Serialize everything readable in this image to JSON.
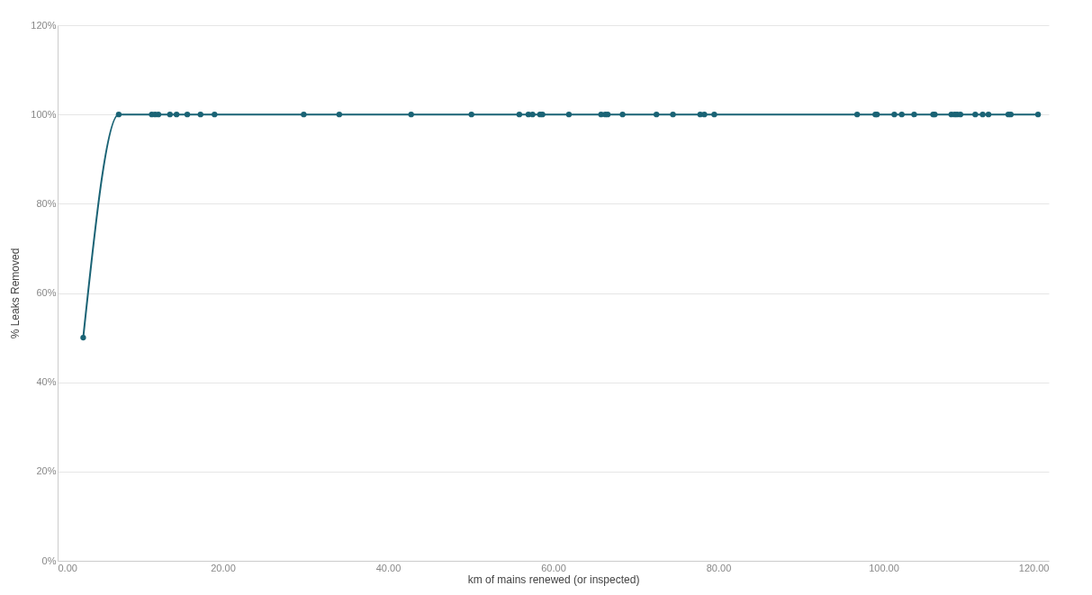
{
  "chart_data": {
    "type": "line",
    "xlabel": "km of mains renewed (or inspected)",
    "ylabel": "% Leaks Removed",
    "marker": "circle",
    "grid": "y",
    "x": [
      3.1,
      7.4,
      11.4,
      11.8,
      12.2,
      13.6,
      14.4,
      15.7,
      17.3,
      19.0,
      29.8,
      34.1,
      42.8,
      50.1,
      55.9,
      57.0,
      57.5,
      58.4,
      58.7,
      61.9,
      65.8,
      66.3,
      66.6,
      68.4,
      72.5,
      74.5,
      77.8,
      78.3,
      79.5,
      96.8,
      99.0,
      99.2,
      101.3,
      102.2,
      103.7,
      106.0,
      106.2,
      108.2,
      108.6,
      108.9,
      109.3,
      111.1,
      112.0,
      112.7,
      115.1,
      115.4,
      118.7
    ],
    "series": [
      {
        "color": "#1a6375",
        "values": [
          50,
          100,
          100,
          100,
          100,
          100,
          100,
          100,
          100,
          100,
          100,
          100,
          100,
          100,
          100,
          100,
          100,
          100,
          100,
          100,
          100,
          100,
          100,
          100,
          100,
          100,
          100,
          100,
          100,
          100,
          100,
          100,
          100,
          100,
          100,
          100,
          100,
          100,
          100,
          100,
          100,
          100,
          100,
          100,
          100,
          100,
          100
        ]
      }
    ],
    "xlim": [
      0,
      120
    ],
    "xticks": [
      {
        "value": 0,
        "label": "0.00"
      },
      {
        "value": 20,
        "label": "20.00"
      },
      {
        "value": 40,
        "label": "40.00"
      },
      {
        "value": 60,
        "label": "60.00"
      },
      {
        "value": 80,
        "label": "80.00"
      },
      {
        "value": 100,
        "label": "100.00"
      },
      {
        "value": 120,
        "label": "120.00"
      }
    ],
    "ylim": [
      0,
      120
    ],
    "yticks": [
      {
        "value": 0,
        "label": "0%"
      },
      {
        "value": 20,
        "label": "20%"
      },
      {
        "value": 40,
        "label": "40%"
      },
      {
        "value": 60,
        "label": "60%"
      },
      {
        "value": 80,
        "label": "80%"
      },
      {
        "value": 100,
        "label": "100%"
      },
      {
        "value": 120,
        "label": "120%"
      }
    ]
  }
}
